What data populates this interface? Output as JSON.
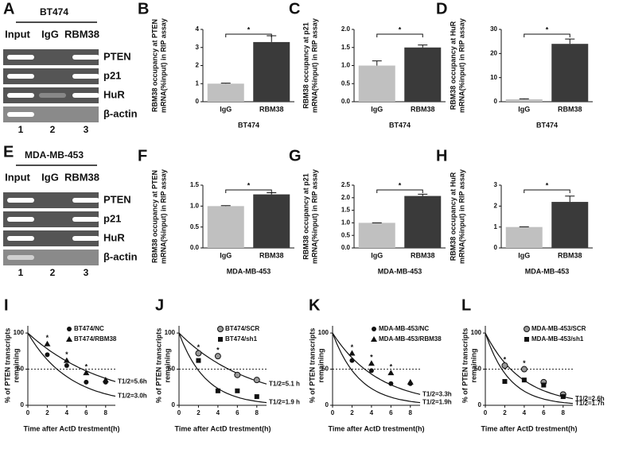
{
  "gels": [
    {
      "letter": "A",
      "title": "BT474",
      "lanes_header": [
        "Input",
        "IgG",
        "RBM38"
      ],
      "rows": [
        "PTEN",
        "p21",
        "HuR",
        "β-actin"
      ],
      "lane_numbers": [
        1,
        2,
        3
      ]
    },
    {
      "letter": "E",
      "title": "MDA-MB-453",
      "lanes_header": [
        "Input",
        "IgG",
        "RBM38"
      ],
      "rows": [
        "PTEN",
        "p21",
        "HuR",
        "β-actin"
      ],
      "lane_numbers": [
        1,
        2,
        3
      ]
    }
  ],
  "chart_data": [
    {
      "type": "bar",
      "letter": "B",
      "ylabel": [
        "RBM38 occupancy at PTEN",
        "mRNA(%input) in RIP assay"
      ],
      "xlabel": "BT474",
      "categories": [
        "IgG",
        "RBM38"
      ],
      "values": [
        1.0,
        3.3
      ],
      "errors": [
        0.03,
        0.35
      ],
      "colors": [
        "#c0c0c0",
        "#3a3a3a"
      ],
      "ylim": [
        0,
        4
      ],
      "yticks": [
        0,
        1,
        2,
        3,
        4
      ],
      "significance": "*"
    },
    {
      "type": "bar",
      "letter": "C",
      "ylabel": [
        "RBM38 occupancy at p21",
        "mRNA(%input) in RIP assay"
      ],
      "xlabel": "BT474",
      "categories": [
        "IgG",
        "RBM38"
      ],
      "values": [
        1.0,
        1.5
      ],
      "errors": [
        0.13,
        0.07
      ],
      "colors": [
        "#c0c0c0",
        "#3a3a3a"
      ],
      "ylim": [
        0,
        2
      ],
      "yticks": [
        {
          "value": 0,
          "label": "0.0"
        },
        0.5,
        {
          "value": 1,
          "label": "1.0"
        },
        1.5,
        {
          "value": 2,
          "label": "2.0"
        }
      ],
      "significance": "*"
    },
    {
      "type": "bar",
      "letter": "D",
      "ylabel": [
        "RBM38 occupancy at HuR",
        "mRNA(%input) in RIP assay"
      ],
      "xlabel": "BT474",
      "categories": [
        "IgG",
        "RBM38"
      ],
      "values": [
        1.0,
        24
      ],
      "errors": [
        0.2,
        2
      ],
      "colors": [
        "#c0c0c0",
        "#3a3a3a"
      ],
      "ylim": [
        0,
        30
      ],
      "yticks": [
        0,
        10,
        20,
        30
      ],
      "significance": "*"
    },
    {
      "type": "bar",
      "letter": "F",
      "ylabel": [
        "RBM38 occupancy at PTEN",
        "mRNA(%input) in RIP assay"
      ],
      "xlabel": "MDA-MB-453",
      "categories": [
        "IgG",
        "RBM38"
      ],
      "values": [
        1.0,
        1.28
      ],
      "errors": [
        0.01,
        0.04
      ],
      "colors": [
        "#c0c0c0",
        "#3a3a3a"
      ],
      "ylim": [
        0,
        1.5
      ],
      "yticks": [
        {
          "value": 0,
          "label": "0.0"
        },
        0.5,
        {
          "value": 1,
          "label": "1.0"
        },
        1.5
      ],
      "significance": "*"
    },
    {
      "type": "bar",
      "letter": "G",
      "ylabel": [
        "RBM38 occupancy at p21",
        "mRNA(%input) in RIP assay"
      ],
      "xlabel": "MDA-MB-453",
      "categories": [
        "IgG",
        "RBM38"
      ],
      "values": [
        1.0,
        2.07
      ],
      "errors": [
        0.0,
        0.07
      ],
      "colors": [
        "#c0c0c0",
        "#3a3a3a"
      ],
      "ylim": [
        0,
        2.5
      ],
      "yticks": [
        {
          "value": 0,
          "label": "0.0"
        },
        0.5,
        {
          "value": 1,
          "label": "1.0"
        },
        1.5,
        {
          "value": 2,
          "label": "2.0"
        },
        2.5
      ],
      "significance": "*"
    },
    {
      "type": "bar",
      "letter": "H",
      "ylabel": [
        "RBM38 occupancy at HuR",
        "mRNA(%input) in RIP assay"
      ],
      "xlabel": "MDA-MB-453",
      "categories": [
        "IgG",
        "RBM38"
      ],
      "values": [
        1.0,
        2.2
      ],
      "errors": [
        0.01,
        0.28
      ],
      "colors": [
        "#c0c0c0",
        "#3a3a3a"
      ],
      "ylim": [
        0,
        3
      ],
      "yticks": [
        0,
        1,
        2,
        3
      ],
      "significance": "*"
    },
    {
      "type": "decay",
      "letter": "I",
      "ylabel": [
        "% of PTEN transcripts",
        "remaining"
      ],
      "xlabel": "Time after ActD trestment(h)",
      "x": [
        2,
        4,
        6,
        8
      ],
      "xlim": [
        0,
        9
      ],
      "xticks": [
        0,
        2,
        4,
        6,
        8
      ],
      "ylim": [
        0,
        110
      ],
      "yticks": [
        0,
        50,
        100
      ],
      "hline": 50,
      "curve_start": 100,
      "star": "*",
      "stars_x": [
        2,
        4,
        6
      ],
      "series": [
        {
          "name": "BT474/NC",
          "marker": "circle",
          "values": [
            70,
            55,
            32,
            32
          ],
          "half_life": 3.0,
          "half_life_label": "T1/2=3.0h"
        },
        {
          "name": "BT474/RBM38",
          "marker": "triangle",
          "values": [
            85,
            62,
            45,
            35
          ],
          "half_life": 5.6,
          "half_life_label": "T1/2=5.6h"
        }
      ]
    },
    {
      "type": "decay",
      "letter": "J",
      "ylabel": [
        "% of PTEN transcripts",
        "remaining"
      ],
      "xlabel": "Time after ActD trestment(h)",
      "x": [
        2,
        4,
        6,
        8
      ],
      "xlim": [
        0,
        9
      ],
      "xticks": [
        0,
        2,
        4,
        6,
        8
      ],
      "ylim": [
        0,
        110
      ],
      "yticks": [
        0,
        50,
        100
      ],
      "hline": 50,
      "curve_start": 100,
      "star": "*",
      "stars_x": [
        2,
        4
      ],
      "series": [
        {
          "name": "BT474/SCR",
          "marker": "hatched",
          "values": [
            72,
            68,
            42,
            35
          ],
          "half_life": 5.1,
          "half_life_label": "T1/2=5.1 h"
        },
        {
          "name": "BT474/sh1",
          "marker": "square",
          "values": [
            62,
            20,
            20,
            12
          ],
          "half_life": 1.9,
          "half_life_label": "T1/2=1.9 h"
        }
      ]
    },
    {
      "type": "decay",
      "letter": "K",
      "ylabel": [
        "% of PTEN transcripts",
        "remaining"
      ],
      "xlabel": "Time after ActD trestment(h)",
      "x": [
        2,
        4,
        6,
        8
      ],
      "xlim": [
        0,
        9
      ],
      "xticks": [
        0,
        2,
        4,
        6,
        8
      ],
      "ylim": [
        0,
        110
      ],
      "yticks": [
        0,
        50,
        100
      ],
      "hline": 50,
      "curve_start": 100,
      "star": "*",
      "stars_x": [
        2,
        4,
        6
      ],
      "series": [
        {
          "name": "MDA-MB-453/NC",
          "marker": "circle",
          "values": [
            62,
            48,
            30,
            30
          ],
          "half_life": 1.9,
          "half_life_label": "T1/2=1.9h"
        },
        {
          "name": "MDA-MB-453/RBM38",
          "marker": "triangle",
          "values": [
            72,
            58,
            45,
            32
          ],
          "half_life": 3.3,
          "half_life_label": "T1/2=3.3h"
        }
      ]
    },
    {
      "type": "decay",
      "letter": "L",
      "ylabel": [
        "% of PTEN transcripts",
        "remaining"
      ],
      "xlabel": "Time after ActD trestment(h)",
      "x": [
        2,
        4,
        6,
        8
      ],
      "xlim": [
        0,
        9
      ],
      "xticks": [
        0,
        2,
        4,
        6,
        8
      ],
      "ylim": [
        0,
        110
      ],
      "yticks": [
        0,
        50,
        100
      ],
      "hline": 50,
      "curve_start": 100,
      "star": "*",
      "stars_x": [
        2,
        4
      ],
      "series": [
        {
          "name": "MDA-MB-453/SCR",
          "marker": "hatched",
          "values": [
            55,
            50,
            32,
            15
          ],
          "half_life": 2.6,
          "half_life_label": "T1/2=2.6h"
        },
        {
          "name": "MDA-MB-453/sh1",
          "marker": "square",
          "values": [
            33,
            35,
            28,
            12
          ],
          "half_life": 1.7,
          "half_life_label": "T1/2=1.7h"
        }
      ]
    }
  ]
}
